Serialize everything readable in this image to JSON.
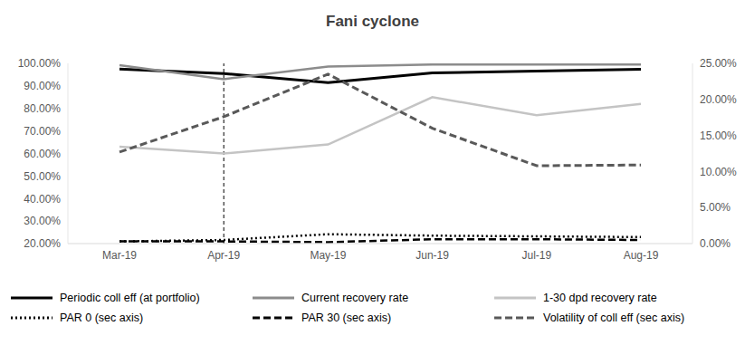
{
  "chart_data": {
    "type": "line",
    "title": "Fani cyclone",
    "categories": [
      "Mar-19",
      "Apr-19",
      "May-19",
      "Jun-19",
      "Jul-19",
      "Aug-19"
    ],
    "ylim": [
      20,
      100
    ],
    "yticks": [
      {
        "value": 20,
        "label": "20.00%"
      },
      {
        "value": 30,
        "label": "30.00%"
      },
      {
        "value": 40,
        "label": "40.00%"
      },
      {
        "value": 50,
        "label": "50.00%"
      },
      {
        "value": 60,
        "label": "60.00%"
      },
      {
        "value": 70,
        "label": "70.00%"
      },
      {
        "value": 80,
        "label": "80.00%"
      },
      {
        "value": 90,
        "label": "90.00%"
      },
      {
        "value": 100,
        "label": "100.00%"
      }
    ],
    "y2lim": [
      0,
      25
    ],
    "y2ticks": [
      {
        "value": 0,
        "label": "0.00%"
      },
      {
        "value": 5,
        "label": "5.00%"
      },
      {
        "value": 10,
        "label": "10.00%"
      },
      {
        "value": 15,
        "label": "15.00%"
      },
      {
        "value": 20,
        "label": "20.00%"
      },
      {
        "value": 25,
        "label": "25.00%"
      }
    ],
    "grid": false,
    "annotations": [
      {
        "x": "Apr-19",
        "line_style": "dashed"
      }
    ],
    "series": [
      {
        "name": "Periodic coll eff (at portfolio)",
        "color": "#000000",
        "line_style": "solid",
        "values": [
          97.5,
          95.5,
          91.5,
          95.8,
          96.6,
          97.4
        ]
      },
      {
        "name": "Current recovery rate",
        "color": "#8c8c8c",
        "line_style": "solid",
        "values": [
          99.2,
          93.0,
          98.6,
          99.5,
          99.5,
          99.5
        ]
      },
      {
        "name": "1-30 dpd recovery rate",
        "color": "#c4c4c4",
        "line_style": "solid",
        "values": [
          63,
          60,
          64,
          85,
          77,
          82
        ]
      },
      {
        "name": "PAR 0 (sec axis)",
        "color": "#000000",
        "line_style": "dotted",
        "axis": "y2",
        "values": [
          0.3,
          0.5,
          1.3,
          1.1,
          1.0,
          0.9
        ]
      },
      {
        "name": "PAR 30 (sec axis)",
        "color": "#000000",
        "line_style": "dashed",
        "axis": "y2",
        "values": [
          0.3,
          0.3,
          0.2,
          0.6,
          0.6,
          0.5
        ]
      },
      {
        "name": "Volatility of coll eff (sec axis)",
        "color": "#595959",
        "line_style": "dashed",
        "axis": "y2",
        "values": [
          12.7,
          17.6,
          23.5,
          16.0,
          10.8,
          10.9
        ]
      }
    ]
  }
}
